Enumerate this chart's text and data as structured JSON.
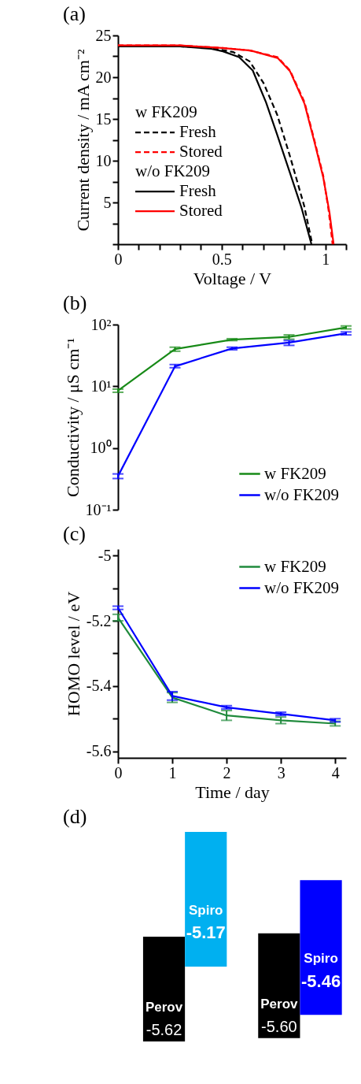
{
  "chart_data": [
    {
      "type": "line",
      "title": "(a)",
      "xlabel": "Voltage / V",
      "ylabel": "Current density / mA cm⁻²",
      "xlim": [
        0,
        1.1
      ],
      "ylim": [
        0,
        25
      ],
      "xticks": [
        0,
        {
          "value": 0.1,
          "label": null
        },
        {
          "value": 0.2,
          "label": null
        },
        {
          "value": 0.3,
          "label": null
        },
        {
          "value": 0.4,
          "label": null
        },
        0.5,
        {
          "value": 0.6,
          "label": null
        },
        {
          "value": 0.7,
          "label": null
        },
        {
          "value": 0.8,
          "label": null
        },
        {
          "value": 0.9,
          "label": null
        },
        1,
        {
          "value": 1.1,
          "label": null
        }
      ],
      "yticks": [
        {
          "value": 0,
          "label": null
        },
        {
          "value": 2.5,
          "label": null
        },
        5,
        {
          "value": 7.5,
          "label": null
        },
        10,
        {
          "value": 12.5,
          "label": null
        },
        15,
        {
          "value": 17.5,
          "label": null
        },
        20,
        {
          "value": 22.5,
          "label": null
        },
        25
      ],
      "legend": "left",
      "annotations": [
        "w FK209",
        "w/o FK209"
      ],
      "series": [
        {
          "name": "Fresh",
          "color": "#000000",
          "line_style": "dashed",
          "x": [
            0,
            0.3,
            0.45,
            0.557,
            0.635,
            0.702,
            0.768,
            0.83,
            0.898,
            0.937
          ],
          "values": [
            23.7,
            23.7,
            23.5,
            23.0,
            21.9,
            19.3,
            15.5,
            10.5,
            4.6,
            0
          ]
        },
        {
          "name": "Stored",
          "color": "#ff0000",
          "line_style": "dashed",
          "x": [
            0,
            0.3,
            0.506,
            0.635,
            0.77,
            0.83,
            0.9,
            0.95,
            0.99,
            1.016,
            1.035
          ],
          "values": [
            23.8,
            23.8,
            23.5,
            23.2,
            22.4,
            20.8,
            17.0,
            12.2,
            8.2,
            4.0,
            0
          ]
        },
        {
          "name": "Fresh",
          "color": "#000000",
          "line_style": "solid",
          "x": [
            0,
            0.3,
            0.45,
            0.506,
            0.584,
            0.65,
            0.714,
            0.768,
            0.83,
            0.886,
            0.933
          ],
          "values": [
            23.7,
            23.7,
            23.4,
            23.1,
            22.4,
            20.8,
            17.0,
            13.1,
            8.5,
            4.3,
            0
          ]
        },
        {
          "name": "Stored",
          "color": "#ff0000",
          "line_style": "solid",
          "x": [
            0,
            0.3,
            0.5,
            0.64,
            0.77,
            0.83,
            0.9,
            0.95,
            0.99,
            1.02,
            1.04
          ],
          "values": [
            23.8,
            23.8,
            23.5,
            23.2,
            22.3,
            20.7,
            16.8,
            12.0,
            8.0,
            3.8,
            0
          ]
        }
      ]
    },
    {
      "type": "line",
      "title": "(b)",
      "ylabel": "Conductivity / μS cm⁻¹",
      "log": "y",
      "categories": [
        null,
        null,
        null,
        null,
        null
      ],
      "ylim": [
        0.1,
        100
      ],
      "tick_labels": "y",
      "yticks": [
        {
          "value": 0.1,
          "label": "10⁻¹"
        },
        {
          "value": 1,
          "label": "10⁰"
        },
        {
          "value": 10,
          "label": "10¹"
        },
        {
          "value": 100,
          "label": "10²"
        }
      ],
      "legend": "bottom right",
      "series": [
        {
          "name": "w FK209",
          "color": "#178a17",
          "values": [
            8.5,
            40,
            57,
            63,
            90
          ],
          "errors": [
            [
              8.0,
              9.0
            ],
            [
              37,
              43
            ],
            [
              55,
              59
            ],
            [
              58,
              68
            ],
            [
              85,
              95
            ]
          ]
        },
        {
          "name": "w/o FK209",
          "color": "#0000ff",
          "values": [
            0.35,
            21,
            41,
            51,
            72
          ],
          "errors": [
            [
              0.32,
              0.38
            ],
            [
              20,
              22.5
            ],
            [
              39,
              43
            ],
            [
              46,
              55
            ],
            [
              68,
              76
            ]
          ]
        }
      ]
    },
    {
      "type": "line",
      "title": "(c)",
      "xlabel": "Time / day",
      "ylabel": "HOMO level / eV",
      "x": [
        0,
        1,
        2,
        3,
        4
      ],
      "xlim": [
        0,
        4.2
      ],
      "ylim": [
        -5.62,
        -4.98
      ],
      "xticks": [
        0,
        1,
        2,
        3,
        4
      ],
      "yticks": [
        -5,
        {
          "value": -5.1,
          "label": null
        },
        -5.2,
        {
          "value": -5.3,
          "label": null
        },
        -5.4,
        {
          "value": -5.5,
          "label": null
        },
        -5.6
      ],
      "legend": "top right",
      "series": [
        {
          "name": "w FK209",
          "color": "#1f8a3c",
          "values": [
            -5.19,
            -5.435,
            -5.49,
            -5.505,
            -5.515
          ],
          "errors": [
            [
              -5.2,
              -5.18
            ],
            [
              -5.45,
              -5.42
            ],
            [
              -5.505,
              -5.475
            ],
            [
              -5.515,
              -5.495
            ],
            [
              -5.522,
              -5.508
            ]
          ]
        },
        {
          "name": "w/o FK209",
          "color": "#0000ff",
          "values": [
            -5.16,
            -5.43,
            -5.465,
            -5.485,
            -5.505
          ],
          "errors": [
            [
              -5.165,
              -5.155
            ],
            [
              -5.443,
              -5.417
            ],
            [
              -5.47,
              -5.46
            ],
            [
              -5.49,
              -5.48
            ],
            [
              -5.51,
              -5.5
            ]
          ]
        }
      ]
    },
    {
      "type": "other",
      "title": "(d)",
      "categories": [
        "Perov",
        "Spiro",
        "Perov",
        "Spiro"
      ],
      "values": [
        -5.62,
        -5.17,
        -5.6,
        -5.46
      ],
      "colors": [
        "#000000",
        "#00b0f0",
        "#000000",
        "#0000ff"
      ],
      "value_labels": [
        "-5.62",
        "-5.17",
        "-5.60",
        "-5.46"
      ]
    }
  ]
}
